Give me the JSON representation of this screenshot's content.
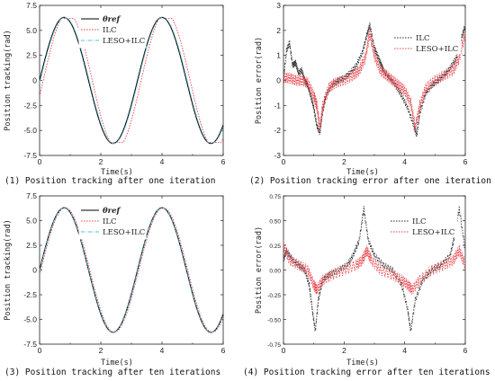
{
  "chart_data": [
    {
      "type": "line",
      "ylabel": "Position tracking(rad)",
      "xlabel": "",
      "xlim": [
        0,
        6
      ],
      "ylim": [
        -7.5,
        7.5
      ],
      "x_ticks": [
        "0",
        "2",
        "4",
        "6"
      ],
      "y_ticks": [
        "-7.5",
        "-5.0",
        "-2.5",
        "0",
        "2.5",
        "5.0",
        "7.5"
      ],
      "legend": [
        "θref",
        "ILC",
        "LESO+ILC"
      ],
      "legend_position": "top-right",
      "caption": "(1) Position tracking after one iteration",
      "series": [
        {
          "name": "θref",
          "color": "#000000",
          "style": "solid",
          "kind": "sine",
          "amplitude": 6.3,
          "period": 3.2,
          "phase": 0
        },
        {
          "name": "ILC",
          "color": "#e8484f",
          "style": "dotted",
          "kind": "sine_clip",
          "amplitude": 6.3,
          "period": 3.2,
          "phase": 0.12
        },
        {
          "name": "LESO+ILC",
          "color": "#4fc3d8",
          "style": "dashdot",
          "kind": "sine",
          "amplitude": 6.3,
          "period": 3.2,
          "phase": 0.02
        }
      ]
    },
    {
      "type": "line",
      "ylabel": "Position error(rad)",
      "xlabel": "",
      "xlim": [
        0,
        6
      ],
      "ylim": [
        -3,
        3
      ],
      "x_ticks": [
        "0",
        "2",
        "4",
        "6"
      ],
      "y_ticks": [
        "-3",
        "-2",
        "-1",
        "0",
        "1",
        "2",
        "3"
      ],
      "legend": [
        "ILC",
        "LESO+ILC"
      ],
      "legend_position": "top-right",
      "caption": "(2) Position tracking error after one iteration",
      "series": [
        {
          "name": "ILC",
          "color": "#333333",
          "style": "dotted",
          "points": [
            [
              0,
              0
            ],
            [
              0.1,
              1.2
            ],
            [
              0.2,
              1.5
            ],
            [
              0.3,
              0.6
            ],
            [
              0.4,
              0.7
            ],
            [
              0.5,
              0.3
            ],
            [
              0.6,
              0.4
            ],
            [
              0.7,
              0.0
            ],
            [
              0.8,
              -0.2
            ],
            [
              0.9,
              -0.6
            ],
            [
              1.0,
              -1.1
            ],
            [
              1.1,
              -1.8
            ],
            [
              1.2,
              -2.1
            ],
            [
              1.3,
              -1.2
            ],
            [
              1.4,
              -0.6
            ],
            [
              1.6,
              -0.2
            ],
            [
              1.8,
              0.0
            ],
            [
              2.0,
              0.1
            ],
            [
              2.2,
              0.3
            ],
            [
              2.4,
              0.6
            ],
            [
              2.6,
              1.1
            ],
            [
              2.75,
              1.8
            ],
            [
              2.85,
              2.2
            ],
            [
              3.0,
              1.3
            ],
            [
              3.1,
              1.0
            ],
            [
              3.2,
              0.7
            ],
            [
              3.3,
              0.4
            ],
            [
              3.5,
              0.1
            ],
            [
              3.7,
              -0.2
            ],
            [
              3.9,
              -0.6
            ],
            [
              4.1,
              -1.1
            ],
            [
              4.3,
              -1.8
            ],
            [
              4.4,
              -2.2
            ],
            [
              4.5,
              -1.3
            ],
            [
              4.7,
              -0.5
            ],
            [
              4.9,
              -0.2
            ],
            [
              5.1,
              0.0
            ],
            [
              5.3,
              0.2
            ],
            [
              5.5,
              0.5
            ],
            [
              5.7,
              0.9
            ],
            [
              5.85,
              1.6
            ],
            [
              6.0,
              2.2
            ]
          ]
        },
        {
          "name": "LESO+ILC",
          "color": "#e8484f",
          "style": "dotted",
          "points": [
            [
              0,
              0.1
            ],
            [
              0.2,
              0.1
            ],
            [
              0.4,
              0.0
            ],
            [
              0.6,
              0.0
            ],
            [
              0.8,
              -0.1
            ],
            [
              1.0,
              -0.6
            ],
            [
              1.1,
              -1.0
            ],
            [
              1.2,
              -1.9
            ],
            [
              1.3,
              -1.0
            ],
            [
              1.5,
              -0.3
            ],
            [
              1.7,
              -0.1
            ],
            [
              2.0,
              0.0
            ],
            [
              2.3,
              0.2
            ],
            [
              2.5,
              0.4
            ],
            [
              2.7,
              0.9
            ],
            [
              2.85,
              1.9
            ],
            [
              3.0,
              1.0
            ],
            [
              3.2,
              0.4
            ],
            [
              3.4,
              0.2
            ],
            [
              3.6,
              0.0
            ],
            [
              3.8,
              -0.2
            ],
            [
              4.0,
              -0.4
            ],
            [
              4.2,
              -0.9
            ],
            [
              4.35,
              -1.9
            ],
            [
              4.5,
              -1.0
            ],
            [
              4.7,
              -0.3
            ],
            [
              5.0,
              0.0
            ],
            [
              5.3,
              0.2
            ],
            [
              5.6,
              0.4
            ],
            [
              5.8,
              0.9
            ],
            [
              6.0,
              1.9
            ]
          ]
        }
      ]
    },
    {
      "type": "line",
      "ylabel": "Position tracking(rad)",
      "xlabel": "",
      "xlim": [
        0,
        6
      ],
      "ylim": [
        -7.5,
        7.5
      ],
      "x_ticks": [
        "0",
        "2",
        "4",
        "6"
      ],
      "y_ticks": [
        "-7.5",
        "-5.0",
        "-2.5",
        "0",
        "2.5",
        "5.0",
        "7.5"
      ],
      "legend": [
        "θref",
        "ILC",
        "LESO+ILC"
      ],
      "legend_position": "top-right",
      "caption": "(3) Position tracking after ten iterations",
      "series": [
        {
          "name": "θref",
          "color": "#000000",
          "style": "solid",
          "kind": "sine",
          "amplitude": 6.3,
          "period": 3.2,
          "phase": 0
        },
        {
          "name": "ILC",
          "color": "#e8484f",
          "style": "dotted",
          "kind": "sine",
          "amplitude": 6.3,
          "period": 3.2,
          "phase": 0.04
        },
        {
          "name": "LESO+ILC",
          "color": "#4fc3d8",
          "style": "dashdot",
          "kind": "sine",
          "amplitude": 6.3,
          "period": 3.2,
          "phase": 0.01
        }
      ]
    },
    {
      "type": "line",
      "ylabel": "Position error(rad)",
      "xlabel": "Time(s)",
      "xlim": [
        0,
        6
      ],
      "ylim": [
        -0.75,
        0.75
      ],
      "x_ticks": [
        "0",
        "2",
        "4",
        "6"
      ],
      "y_ticks": [
        "-0.75",
        "-0.50",
        "-0.25",
        "0.00",
        "0.25",
        "0.50",
        "0.75"
      ],
      "legend": [
        "ILC",
        "LESO+ILC"
      ],
      "legend_position": "top-right",
      "caption": "(4) Position tracking error after ten iterations",
      "series": [
        {
          "name": "ILC",
          "color": "#333333",
          "style": "dotted",
          "points": [
            [
              0,
              0.1
            ],
            [
              0.1,
              0.2
            ],
            [
              0.3,
              0.1
            ],
            [
              0.5,
              0.05
            ],
            [
              0.7,
              0.0
            ],
            [
              0.85,
              -0.15
            ],
            [
              0.95,
              -0.4
            ],
            [
              1.05,
              -0.62
            ],
            [
              1.15,
              -0.3
            ],
            [
              1.3,
              -0.1
            ],
            [
              1.5,
              -0.05
            ],
            [
              1.8,
              0.0
            ],
            [
              2.1,
              0.05
            ],
            [
              2.3,
              0.15
            ],
            [
              2.5,
              0.3
            ],
            [
              2.65,
              0.62
            ],
            [
              2.8,
              0.3
            ],
            [
              3.0,
              0.15
            ],
            [
              3.3,
              0.05
            ],
            [
              3.6,
              0.0
            ],
            [
              3.9,
              -0.15
            ],
            [
              4.1,
              -0.4
            ],
            [
              4.2,
              -0.62
            ],
            [
              4.35,
              -0.3
            ],
            [
              4.6,
              -0.1
            ],
            [
              4.9,
              0.0
            ],
            [
              5.2,
              0.05
            ],
            [
              5.5,
              0.15
            ],
            [
              5.65,
              0.35
            ],
            [
              5.8,
              0.62
            ],
            [
              6.0,
              0.2
            ]
          ]
        },
        {
          "name": "LESO+ILC",
          "color": "#e8484f",
          "style": "dotted",
          "points": [
            [
              0,
              0.25
            ],
            [
              0.2,
              0.1
            ],
            [
              0.5,
              0.05
            ],
            [
              0.8,
              0.0
            ],
            [
              1.0,
              -0.15
            ],
            [
              1.1,
              -0.2
            ],
            [
              1.3,
              -0.1
            ],
            [
              1.6,
              -0.05
            ],
            [
              2.0,
              0.0
            ],
            [
              2.4,
              0.05
            ],
            [
              2.6,
              0.1
            ],
            [
              2.75,
              0.2
            ],
            [
              2.9,
              0.1
            ],
            [
              3.2,
              0.0
            ],
            [
              3.6,
              -0.05
            ],
            [
              3.9,
              -0.1
            ],
            [
              4.1,
              -0.15
            ],
            [
              4.25,
              -0.2
            ],
            [
              4.5,
              -0.1
            ],
            [
              4.9,
              0.0
            ],
            [
              5.3,
              0.05
            ],
            [
              5.6,
              0.1
            ],
            [
              5.8,
              0.2
            ],
            [
              6.0,
              0.05
            ]
          ]
        }
      ]
    }
  ]
}
